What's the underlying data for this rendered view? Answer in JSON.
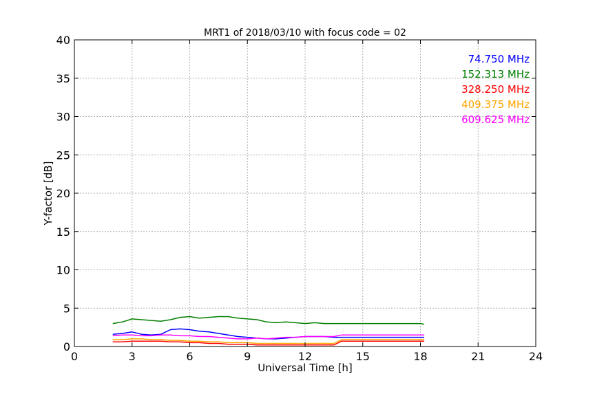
{
  "chart_data": {
    "type": "line",
    "title": "MRT1 of 2018/03/10 with focus code = 02",
    "xlabel": "Universal Time [h]",
    "ylabel": "Y-factor [dB]",
    "xlim": [
      0,
      24
    ],
    "ylim": [
      0,
      40
    ],
    "xticks": [
      0,
      3,
      6,
      9,
      12,
      15,
      18,
      21,
      24
    ],
    "yticks": [
      0,
      5,
      10,
      15,
      20,
      25,
      30,
      35,
      40
    ],
    "grid": true,
    "legend_position": "top-right",
    "series": [
      {
        "name": "74.750 MHz",
        "color": "#0000ff",
        "points": [
          [
            2.0,
            1.6
          ],
          [
            2.5,
            1.7
          ],
          [
            3.0,
            1.9
          ],
          [
            3.5,
            1.6
          ],
          [
            4.0,
            1.5
          ],
          [
            4.5,
            1.6
          ],
          [
            5.0,
            2.2
          ],
          [
            5.5,
            2.3
          ],
          [
            6.0,
            2.2
          ],
          [
            6.5,
            2.0
          ],
          [
            7.0,
            1.9
          ],
          [
            7.5,
            1.7
          ],
          [
            8.0,
            1.5
          ],
          [
            8.5,
            1.3
          ],
          [
            9.0,
            1.2
          ],
          [
            9.5,
            1.1
          ],
          [
            10.0,
            1.0
          ],
          [
            10.5,
            1.0
          ],
          [
            11.0,
            1.1
          ],
          [
            11.5,
            1.2
          ],
          [
            12.0,
            1.3
          ],
          [
            12.5,
            1.3
          ],
          [
            13.0,
            1.3
          ],
          [
            13.5,
            1.2
          ],
          [
            13.9,
            1.2
          ],
          [
            18.0,
            1.2
          ],
          [
            18.2,
            1.2
          ]
        ]
      },
      {
        "name": "152.313 MHz",
        "color": "#008000",
        "points": [
          [
            2.0,
            3.0
          ],
          [
            2.5,
            3.2
          ],
          [
            3.0,
            3.6
          ],
          [
            3.5,
            3.5
          ],
          [
            4.0,
            3.4
          ],
          [
            4.5,
            3.3
          ],
          [
            5.0,
            3.5
          ],
          [
            5.5,
            3.8
          ],
          [
            6.0,
            3.9
          ],
          [
            6.5,
            3.7
          ],
          [
            7.0,
            3.8
          ],
          [
            7.5,
            3.9
          ],
          [
            8.0,
            3.9
          ],
          [
            8.5,
            3.7
          ],
          [
            9.0,
            3.6
          ],
          [
            9.5,
            3.5
          ],
          [
            10.0,
            3.2
          ],
          [
            10.5,
            3.1
          ],
          [
            11.0,
            3.2
          ],
          [
            11.5,
            3.1
          ],
          [
            12.0,
            3.0
          ],
          [
            12.5,
            3.1
          ],
          [
            13.0,
            3.0
          ],
          [
            13.5,
            3.0
          ],
          [
            13.9,
            3.0
          ],
          [
            18.0,
            3.0
          ],
          [
            18.2,
            2.9
          ]
        ]
      },
      {
        "name": "328.250 MHz",
        "color": "#ff0000",
        "points": [
          [
            2.0,
            0.6
          ],
          [
            2.5,
            0.6
          ],
          [
            3.0,
            0.7
          ],
          [
            3.5,
            0.7
          ],
          [
            4.0,
            0.7
          ],
          [
            4.5,
            0.7
          ],
          [
            5.0,
            0.6
          ],
          [
            5.5,
            0.6
          ],
          [
            6.0,
            0.5
          ],
          [
            6.5,
            0.5
          ],
          [
            7.0,
            0.4
          ],
          [
            7.5,
            0.4
          ],
          [
            8.0,
            0.3
          ],
          [
            8.5,
            0.3
          ],
          [
            9.0,
            0.3
          ],
          [
            9.5,
            0.2
          ],
          [
            10.0,
            0.2
          ],
          [
            10.5,
            0.2
          ],
          [
            11.0,
            0.2
          ],
          [
            11.5,
            0.2
          ],
          [
            12.0,
            0.2
          ],
          [
            12.5,
            0.2
          ],
          [
            13.0,
            0.2
          ],
          [
            13.5,
            0.2
          ],
          [
            13.9,
            0.7
          ],
          [
            18.0,
            0.7
          ],
          [
            18.2,
            0.7
          ]
        ]
      },
      {
        "name": "409.375 MHz",
        "color": "#ffa500",
        "points": [
          [
            2.0,
            0.9
          ],
          [
            2.5,
            0.9
          ],
          [
            3.0,
            1.0
          ],
          [
            3.5,
            1.0
          ],
          [
            4.0,
            0.9
          ],
          [
            4.5,
            0.9
          ],
          [
            5.0,
            0.8
          ],
          [
            5.5,
            0.8
          ],
          [
            6.0,
            0.7
          ],
          [
            6.5,
            0.7
          ],
          [
            7.0,
            0.6
          ],
          [
            7.5,
            0.6
          ],
          [
            8.0,
            0.5
          ],
          [
            8.5,
            0.5
          ],
          [
            9.0,
            0.5
          ],
          [
            9.5,
            0.4
          ],
          [
            10.0,
            0.4
          ],
          [
            10.5,
            0.4
          ],
          [
            11.0,
            0.4
          ],
          [
            11.5,
            0.4
          ],
          [
            12.0,
            0.4
          ],
          [
            12.5,
            0.4
          ],
          [
            13.0,
            0.4
          ],
          [
            13.5,
            0.4
          ],
          [
            13.9,
            0.9
          ],
          [
            18.0,
            0.9
          ],
          [
            18.2,
            0.9
          ]
        ]
      },
      {
        "name": "609.625 MHz",
        "color": "#ff00ff",
        "points": [
          [
            2.0,
            1.4
          ],
          [
            2.5,
            1.5
          ],
          [
            3.0,
            1.5
          ],
          [
            3.5,
            1.4
          ],
          [
            4.0,
            1.4
          ],
          [
            4.5,
            1.5
          ],
          [
            5.0,
            1.5
          ],
          [
            5.5,
            1.4
          ],
          [
            6.0,
            1.4
          ],
          [
            6.5,
            1.3
          ],
          [
            7.0,
            1.3
          ],
          [
            7.5,
            1.2
          ],
          [
            8.0,
            1.1
          ],
          [
            8.5,
            1.0
          ],
          [
            9.0,
            1.0
          ],
          [
            9.5,
            1.1
          ],
          [
            10.0,
            1.0
          ],
          [
            10.5,
            1.1
          ],
          [
            11.0,
            1.2
          ],
          [
            11.5,
            1.2
          ],
          [
            12.0,
            1.3
          ],
          [
            12.5,
            1.3
          ],
          [
            13.0,
            1.3
          ],
          [
            13.5,
            1.3
          ],
          [
            13.9,
            1.5
          ],
          [
            18.0,
            1.5
          ],
          [
            18.2,
            1.5
          ]
        ]
      }
    ]
  }
}
